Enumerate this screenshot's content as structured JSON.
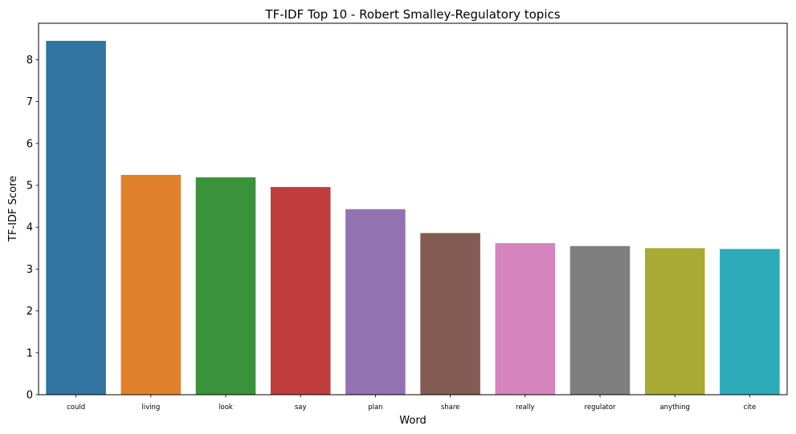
{
  "chart_data": {
    "type": "bar",
    "title": "TF-IDF Top 10 - Robert Smalley-Regulatory topics",
    "xlabel": "Word",
    "ylabel": "TF-IDF Score",
    "categories": [
      "could",
      "living",
      "look",
      "say",
      "plan",
      "share",
      "really",
      "regulator",
      "anything",
      "cite"
    ],
    "values": [
      8.45,
      5.25,
      5.19,
      4.96,
      4.43,
      3.86,
      3.62,
      3.55,
      3.5,
      3.48
    ],
    "colors": [
      "#3274a1",
      "#e1812c",
      "#3a923a",
      "#c03d3e",
      "#9372b2",
      "#845b53",
      "#d684bd",
      "#7f7f7f",
      "#a9aa35",
      "#2eabb8"
    ],
    "yticks": [
      "0",
      "1",
      "2",
      "3",
      "4",
      "5",
      "6",
      "7",
      "8"
    ],
    "ylim": [
      0,
      8.87
    ],
    "grid": false,
    "legend": "none"
  }
}
